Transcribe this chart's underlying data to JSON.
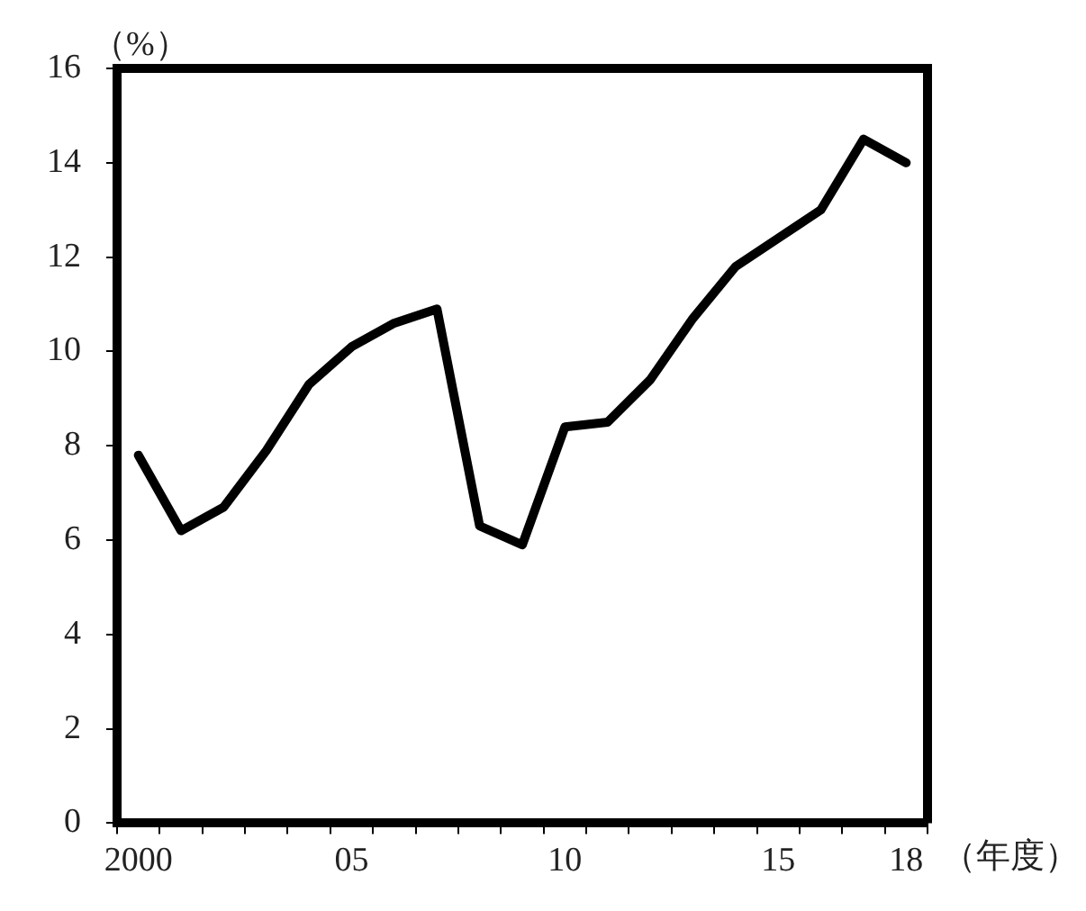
{
  "chart_data": {
    "type": "line",
    "xlabel": "（年度）",
    "ylabel": "（%）",
    "categories": [
      "2000",
      null,
      null,
      null,
      null,
      "05",
      null,
      null,
      null,
      null,
      "10",
      null,
      null,
      null,
      null,
      "15",
      null,
      null,
      "18"
    ],
    "series": [
      {
        "color": "#000000",
        "values": [
          7.8,
          6.2,
          6.7,
          7.9,
          9.3,
          10.1,
          10.6,
          10.9,
          6.3,
          5.9,
          8.4,
          8.5,
          9.4,
          10.7,
          11.8,
          12.4,
          13.0,
          14.5,
          14.0
        ]
      }
    ],
    "ylim": [
      0,
      16
    ],
    "yticks": [
      0,
      2,
      4,
      6,
      8,
      10,
      12,
      14,
      16
    ],
    "grid": false,
    "legend": false,
    "marker": "none",
    "line_style": "solid"
  }
}
